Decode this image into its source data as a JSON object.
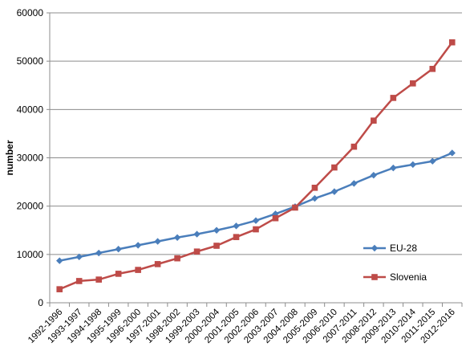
{
  "chart_data": {
    "type": "line",
    "title": "",
    "xlabel": "",
    "ylabel": "number",
    "ylim": [
      0,
      60000
    ],
    "yticks": [
      0,
      10000,
      20000,
      30000,
      40000,
      50000,
      60000
    ],
    "grid": true,
    "legend_position": "right",
    "categories": [
      "1992-1996",
      "1993-1997",
      "1994-1998",
      "1995-1999",
      "1996-2000",
      "1997-2001",
      "1998-2002",
      "1999-2003",
      "2000-2004",
      "2001-2005",
      "2002-2006",
      "2003-2007",
      "2004-2008",
      "2005-2009",
      "2006-2010",
      "2007-2011",
      "2008-2012",
      "2009-2013",
      "2010-2014",
      "2011-2015",
      "2012-2016"
    ],
    "series": [
      {
        "name": "EU-28",
        "color": "#4a7ebb",
        "marker": "diamond",
        "values": [
          8700,
          9500,
          10300,
          11100,
          11900,
          12700,
          13500,
          14200,
          15000,
          15900,
          17000,
          18400,
          19900,
          21600,
          23000,
          24700,
          26400,
          27900,
          28600,
          29300,
          31000
        ]
      },
      {
        "name": "Slovenia",
        "color": "#be4b48",
        "marker": "square",
        "values": [
          2800,
          4500,
          4800,
          6000,
          6800,
          8000,
          9200,
          10600,
          11800,
          13600,
          15200,
          17500,
          19700,
          23800,
          28000,
          32300,
          37700,
          42400,
          45400,
          48400,
          53900
        ]
      }
    ]
  }
}
